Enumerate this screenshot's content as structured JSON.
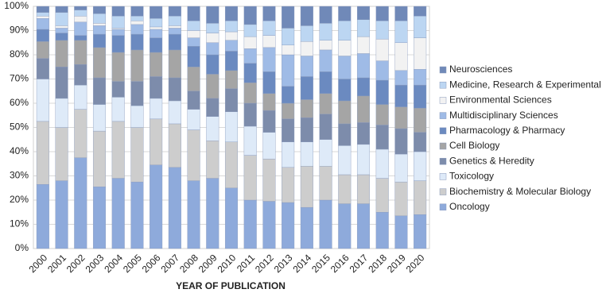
{
  "chart_data": {
    "type": "stacked-bar",
    "categories": [
      "2000",
      "2001",
      "2002",
      "2003",
      "2004",
      "2005",
      "2006",
      "2007",
      "2008",
      "2009",
      "2010",
      "2011",
      "2012",
      "2013",
      "2014",
      "2015",
      "2016",
      "2017",
      "2018",
      "2019",
      "2020"
    ],
    "x_label": "YEAR OF PUBLICATION",
    "ylim": [
      0,
      100
    ],
    "yticks": [
      {
        "value": 0,
        "label": "0%"
      },
      {
        "value": 10,
        "label": "10%"
      },
      {
        "value": 20,
        "label": "20%"
      },
      {
        "value": 30,
        "label": "30%"
      },
      {
        "value": 40,
        "label": "40%"
      },
      {
        "value": 50,
        "label": "50%"
      },
      {
        "value": 60,
        "label": "60%"
      },
      {
        "value": 70,
        "label": "70%"
      },
      {
        "value": 80,
        "label": "80%"
      },
      {
        "value": 90,
        "label": "90%"
      },
      {
        "value": 100,
        "label": "100%"
      }
    ],
    "grid": true,
    "legend": "right",
    "series": [
      {
        "name": "Oncology",
        "color": "#8eaadb",
        "values": [
          26.5,
          28,
          37.5,
          25.5,
          29,
          27.5,
          34.5,
          33.5,
          28,
          29,
          25,
          20,
          19.5,
          19,
          17,
          20,
          18.5,
          18.5,
          15,
          13.5,
          14
        ]
      },
      {
        "name": "Biochemistry & Molecular Biology",
        "color": "#cdcdcd",
        "values": [
          26,
          22,
          20,
          23,
          23.5,
          22.5,
          19,
          18,
          21,
          15.5,
          19,
          18.5,
          17.5,
          14.5,
          17,
          14,
          12,
          12,
          14,
          14,
          14
        ]
      },
      {
        "name": "Toxicology",
        "color": "#deeaf8",
        "values": [
          17.5,
          12,
          10,
          11,
          10,
          9,
          8.5,
          9.5,
          8.5,
          10,
          12.5,
          12,
          11,
          10.5,
          10,
          11,
          12,
          12.5,
          12,
          11.5,
          12
        ]
      },
      {
        "name": "Genetics & Heredity",
        "color": "#7d8cab",
        "values": [
          8.5,
          13,
          8.5,
          11,
          6.5,
          10,
          9,
          9.5,
          7.5,
          7.5,
          9.5,
          9.5,
          9,
          9.5,
          10,
          10.5,
          9,
          9,
          10,
          10.5,
          8
        ]
      },
      {
        "name": "Cell Biology",
        "color": "#a5a5a5",
        "values": [
          7,
          11,
          10,
          12.5,
          12,
          13,
          10,
          11.5,
          10,
          10,
          7.5,
          8.5,
          7,
          6.5,
          7.5,
          8.5,
          9.5,
          11,
          8.5,
          9,
          10
        ]
      },
      {
        "name": "Pharmacology & Pharmacy",
        "color": "#6b8ac0",
        "values": [
          5,
          3,
          2,
          5.5,
          7,
          6.5,
          6,
          6.5,
          8.5,
          8,
          8,
          8,
          9,
          7,
          9.5,
          9,
          9,
          7.5,
          10,
          9,
          9.5
        ]
      },
      {
        "name": "Multidisciplinary Sciences",
        "color": "#9fbbe6",
        "values": [
          4.5,
          2,
          5.5,
          3.5,
          2.5,
          4,
          3.5,
          2.5,
          3.5,
          5,
          4.5,
          6,
          10,
          13,
          8.5,
          9,
          9.5,
          10,
          8,
          6,
          6.5
        ]
      },
      {
        "name": "Environmental Sciences",
        "color": "#f2f2f2",
        "values": [
          1,
          1,
          2.5,
          1,
          0.5,
          1.5,
          1,
          1,
          3,
          4,
          3.5,
          5,
          5,
          4,
          6,
          4,
          6.5,
          7,
          9,
          11.5,
          13
        ]
      },
      {
        "name": "Medicine, Research & Experimental",
        "color": "#bcd6f2",
        "values": [
          1.5,
          5.5,
          2.5,
          4,
          5,
          2,
          3.5,
          4,
          4,
          4,
          4.5,
          5,
          6,
          7,
          6.5,
          7,
          8,
          7,
          7.5,
          9,
          9
        ]
      },
      {
        "name": "Neurosciences",
        "color": "#7089b8",
        "values": [
          2.5,
          2.5,
          1.5,
          3,
          4,
          4,
          5,
          4,
          6,
          7,
          6,
          7.5,
          6,
          9,
          8,
          7,
          6,
          5.5,
          6,
          6,
          4
        ]
      }
    ]
  }
}
